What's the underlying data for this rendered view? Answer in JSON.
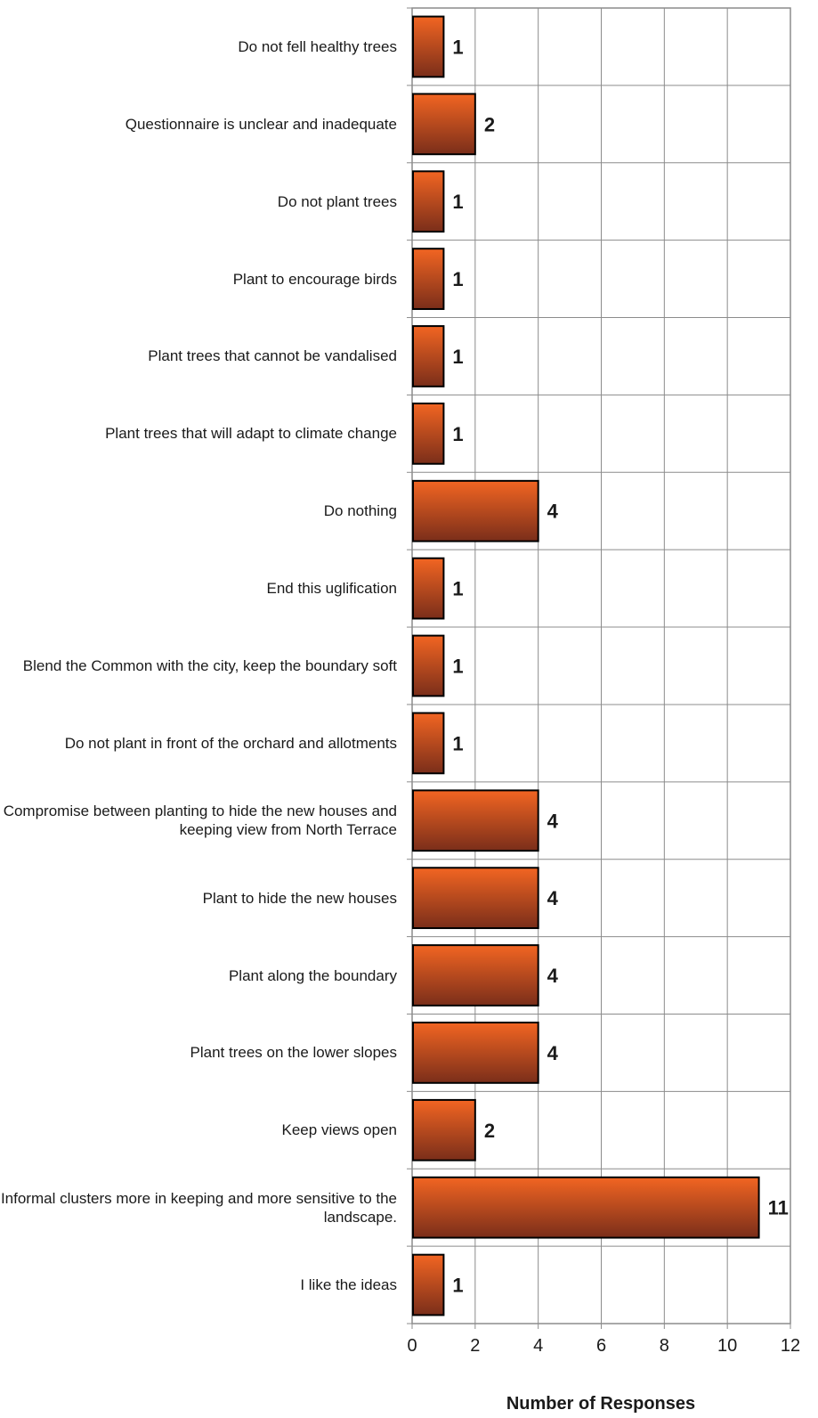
{
  "chart_data": {
    "type": "bar",
    "orientation": "horizontal",
    "categories": [
      "Do not fell healthy trees",
      "Questionnaire is unclear and inadequate",
      "Do not plant trees",
      "Plant to encourage birds",
      "Plant trees that cannot be vandalised",
      "Plant trees that will adapt to climate change",
      "Do nothing",
      "End this uglification",
      "Blend the Common with the city, keep the boundary soft",
      "Do not plant in front of the orchard and allotments",
      "Compromise between planting to hide the new houses and keeping view from North Terrace",
      "Plant to hide the new houses",
      "Plant along the boundary",
      "Plant trees on the lower slopes",
      "Keep views open",
      "Informal clusters more in keeping and more sensitive to the landscape.",
      "I like the ideas"
    ],
    "values": [
      1,
      2,
      1,
      1,
      1,
      1,
      4,
      1,
      1,
      1,
      4,
      4,
      4,
      4,
      2,
      11,
      1
    ],
    "xlabel": "Number of Responses",
    "ylabel": "",
    "title": "",
    "xlim": [
      0,
      12
    ],
    "xticks": [
      0,
      2,
      4,
      6,
      8,
      10,
      12
    ],
    "grid": true,
    "legend": "none",
    "bar_color_top": "#f26522",
    "bar_color_bottom": "#7a2e1a",
    "data_labels": true
  }
}
